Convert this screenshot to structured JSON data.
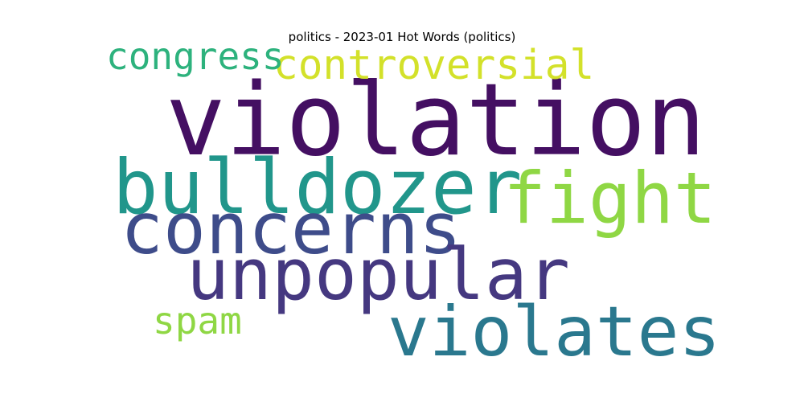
{
  "chart_data": {
    "type": "wordcloud",
    "title": "politics - 2023-01 Hot Words (politics)",
    "words": [
      {
        "text": "violation",
        "weight": 100,
        "color": "#440f62"
      },
      {
        "text": "bulldozer",
        "weight": 75,
        "color": "#21968b"
      },
      {
        "text": "fight",
        "weight": 70,
        "color": "#8fd744"
      },
      {
        "text": "concerns",
        "weight": 70,
        "color": "#3e4c8a"
      },
      {
        "text": "unpopular",
        "weight": 70,
        "color": "#453880"
      },
      {
        "text": "violates",
        "weight": 68,
        "color": "#2a788e"
      },
      {
        "text": "controversial",
        "weight": 42,
        "color": "#d3e12a"
      },
      {
        "text": "congress",
        "weight": 38,
        "color": "#2db27d"
      },
      {
        "text": "spam",
        "weight": 38,
        "color": "#8fd744"
      }
    ]
  }
}
